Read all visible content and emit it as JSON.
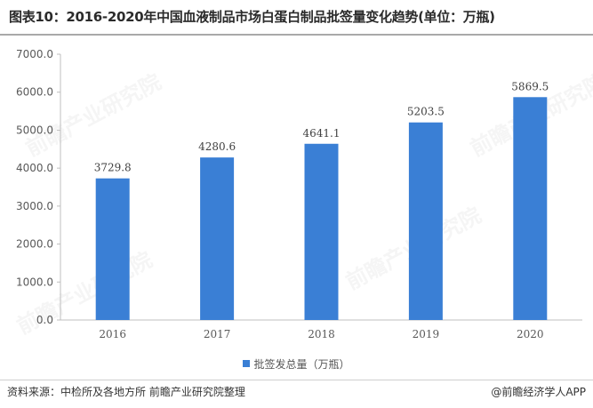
{
  "title": "图表10：2016-2020年中国血液制品市场白蛋白制品批签量变化趋势(单位：万瓶)",
  "source": "资料来源：中检所及各地方所 前瞻产业研究院整理",
  "credit": "@前瞻经济学人APP",
  "watermark": "前瞻产业研究院",
  "colors": {
    "bar": "#3a7fd5",
    "axis": "#bfbfbf",
    "text": "#595959"
  },
  "chart_data": {
    "type": "bar",
    "categories": [
      "2016",
      "2017",
      "2018",
      "2019",
      "2020"
    ],
    "series": [
      {
        "name": "批签发总量（万瓶）",
        "values": [
          3729.8,
          4280.6,
          4641.1,
          5203.5,
          5869.5
        ]
      }
    ],
    "value_labels": [
      "3729.8",
      "4280.6",
      "4641.1",
      "5203.5",
      "5869.5"
    ],
    "y_ticks": [
      "0.0",
      "1000.0",
      "2000.0",
      "3000.0",
      "4000.0",
      "5000.0",
      "6000.0",
      "7000.0"
    ],
    "ylim": [
      0,
      7000
    ],
    "grid": false,
    "legend_position": "bottom"
  }
}
